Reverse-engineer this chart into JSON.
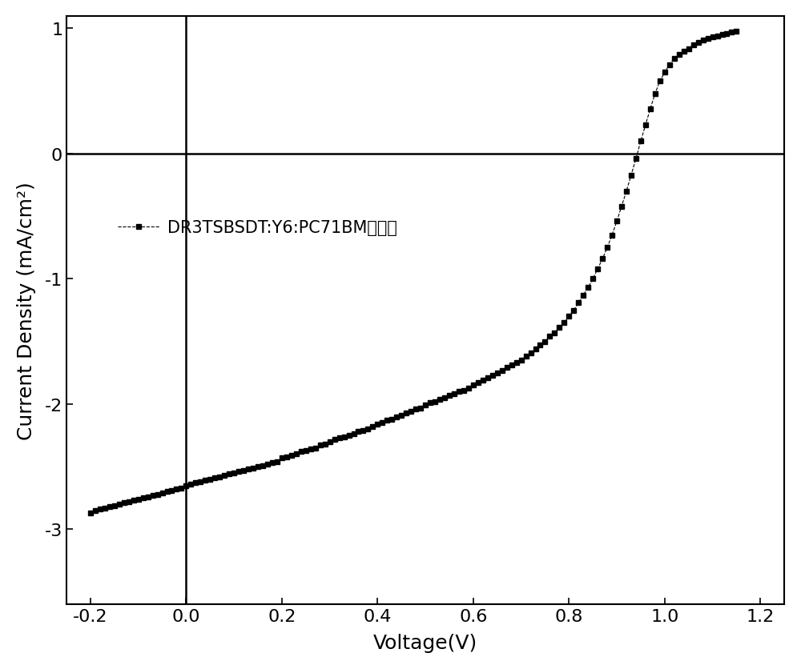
{
  "title": "",
  "xlabel": "Voltage(V)",
  "ylabel": "Current Density（mA/cm²）",
  "xlim": [
    -0.25,
    1.25
  ],
  "ylim": [
    -3.6,
    1.1
  ],
  "xticks": [
    -0.2,
    0.0,
    0.2,
    0.4,
    0.6,
    0.8,
    1.0,
    1.2
  ],
  "yticks": [
    -3.0,
    -2.0,
    -1.0,
    0.0,
    1.0
  ],
  "legend_label": "DR3TSBSDT:Y6:PC71BM未处理",
  "line_color": "black",
  "marker": "s",
  "linestyle": "--",
  "background_color": "#ffffff",
  "voltage": [
    -0.2,
    -0.19,
    -0.18,
    -0.17,
    -0.16,
    -0.15,
    -0.14,
    -0.13,
    -0.12,
    -0.11,
    -0.1,
    -0.09,
    -0.08,
    -0.07,
    -0.06,
    -0.05,
    -0.04,
    -0.03,
    -0.02,
    -0.01,
    0.0,
    0.01,
    0.02,
    0.03,
    0.04,
    0.05,
    0.06,
    0.07,
    0.08,
    0.09,
    0.1,
    0.11,
    0.12,
    0.13,
    0.14,
    0.15,
    0.16,
    0.17,
    0.18,
    0.19,
    0.2,
    0.21,
    0.22,
    0.23,
    0.24,
    0.25,
    0.26,
    0.27,
    0.28,
    0.29,
    0.3,
    0.31,
    0.32,
    0.33,
    0.34,
    0.35,
    0.36,
    0.37,
    0.38,
    0.39,
    0.4,
    0.41,
    0.42,
    0.43,
    0.44,
    0.45,
    0.46,
    0.47,
    0.48,
    0.49,
    0.5,
    0.51,
    0.52,
    0.53,
    0.54,
    0.55,
    0.56,
    0.57,
    0.58,
    0.59,
    0.6,
    0.61,
    0.62,
    0.63,
    0.64,
    0.65,
    0.66,
    0.67,
    0.68,
    0.69,
    0.7,
    0.71,
    0.72,
    0.73,
    0.74,
    0.75,
    0.76,
    0.77,
    0.78,
    0.79,
    0.8,
    0.81,
    0.82,
    0.83,
    0.84,
    0.85,
    0.86,
    0.87,
    0.88,
    0.89,
    0.9,
    0.91,
    0.92,
    0.93,
    0.94,
    0.95,
    0.96,
    0.97,
    0.98,
    0.99,
    1.0,
    1.01,
    1.02,
    1.03,
    1.04,
    1.05,
    1.06,
    1.07,
    1.08,
    1.09,
    1.1,
    1.11,
    1.12,
    1.13,
    1.14,
    1.15
  ],
  "current": [
    -2.87,
    -2.85,
    -2.84,
    -2.83,
    -2.82,
    -2.81,
    -2.8,
    -2.79,
    -2.78,
    -2.77,
    -2.76,
    -2.75,
    -2.74,
    -2.73,
    -2.72,
    -2.71,
    -2.7,
    -2.69,
    -2.68,
    -2.67,
    -2.65,
    -2.64,
    -2.63,
    -2.62,
    -2.61,
    -2.6,
    -2.59,
    -2.58,
    -2.57,
    -2.56,
    -2.55,
    -2.54,
    -2.53,
    -2.52,
    -2.51,
    -2.5,
    -2.49,
    -2.48,
    -2.47,
    -2.46,
    -2.43,
    -2.42,
    -2.41,
    -2.4,
    -2.38,
    -2.37,
    -2.36,
    -2.35,
    -2.33,
    -2.32,
    -2.3,
    -2.28,
    -2.27,
    -2.26,
    -2.25,
    -2.24,
    -2.22,
    -2.21,
    -2.2,
    -2.18,
    -2.16,
    -2.15,
    -2.13,
    -2.12,
    -2.1,
    -2.09,
    -2.07,
    -2.06,
    -2.04,
    -2.03,
    -2.01,
    -1.99,
    -1.98,
    -1.96,
    -1.95,
    -1.93,
    -1.92,
    -1.9,
    -1.89,
    -1.87,
    -1.85,
    -1.83,
    -1.81,
    -1.79,
    -1.77,
    -1.75,
    -1.73,
    -1.71,
    -1.69,
    -1.67,
    -1.65,
    -1.62,
    -1.59,
    -1.56,
    -1.53,
    -1.5,
    -1.46,
    -1.43,
    -1.39,
    -1.35,
    -1.3,
    -1.25,
    -1.19,
    -1.13,
    -1.07,
    -1.0,
    -0.92,
    -0.84,
    -0.75,
    -0.65,
    -0.54,
    -0.42,
    -0.3,
    -0.17,
    -0.04,
    0.1,
    0.23,
    0.36,
    0.48,
    0.58,
    0.65,
    0.71,
    0.76,
    0.79,
    0.82,
    0.84,
    0.87,
    0.89,
    0.91,
    0.92,
    0.93,
    0.94,
    0.95,
    0.96,
    0.97,
    0.98
  ]
}
